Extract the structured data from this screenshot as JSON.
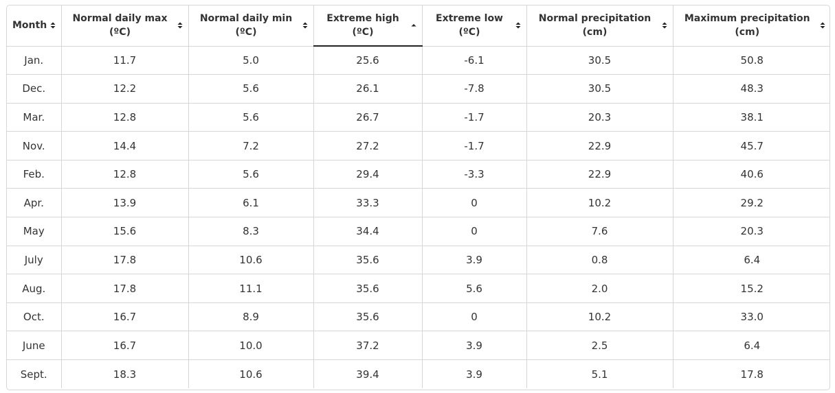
{
  "table": {
    "columns": [
      {
        "line1": "Month",
        "line2": "",
        "sort": "both"
      },
      {
        "line1": "Normal daily max",
        "line2": "(ºC)",
        "sort": "both"
      },
      {
        "line1": "Normal daily min",
        "line2": "(ºC)",
        "sort": "both"
      },
      {
        "line1": "Extreme high",
        "line2": "(ºC)",
        "sort": "asc"
      },
      {
        "line1": "Extreme low",
        "line2": "(ºC)",
        "sort": "both"
      },
      {
        "line1": "Normal precipitation",
        "line2": "(cm)",
        "sort": "both"
      },
      {
        "line1": "Maximum precipitation",
        "line2": "(cm)",
        "sort": "both"
      }
    ],
    "rows": [
      [
        "Jan.",
        "11.7",
        "5.0",
        "25.6",
        "-6.1",
        "30.5",
        "50.8"
      ],
      [
        "Dec.",
        "12.2",
        "5.6",
        "26.1",
        "-7.8",
        "30.5",
        "48.3"
      ],
      [
        "Mar.",
        "12.8",
        "5.6",
        "26.7",
        "-1.7",
        "20.3",
        "38.1"
      ],
      [
        "Nov.",
        "14.4",
        "7.2",
        "27.2",
        "-1.7",
        "22.9",
        "45.7"
      ],
      [
        "Feb.",
        "12.8",
        "5.6",
        "29.4",
        "-3.3",
        "22.9",
        "40.6"
      ],
      [
        "Apr.",
        "13.9",
        "6.1",
        "33.3",
        "0",
        "10.2",
        "29.2"
      ],
      [
        "May",
        "15.6",
        "8.3",
        "34.4",
        "0",
        "7.6",
        "20.3"
      ],
      [
        "July",
        "17.8",
        "10.6",
        "35.6",
        "3.9",
        "0.8",
        "6.4"
      ],
      [
        "Aug.",
        "17.8",
        "11.1",
        "35.6",
        "5.6",
        "2.0",
        "15.2"
      ],
      [
        "Oct.",
        "16.7",
        "8.9",
        "35.6",
        "0",
        "10.2",
        "33.0"
      ],
      [
        "June",
        "16.7",
        "10.0",
        "37.2",
        "3.9",
        "2.5",
        "6.4"
      ],
      [
        "Sept.",
        "18.3",
        "10.6",
        "39.4",
        "3.9",
        "5.1",
        "17.8"
      ]
    ]
  },
  "colors": {
    "border": "#d6d6d6",
    "text": "#333333",
    "active_underline": "#222222"
  },
  "icons": {
    "sortable": "sort-both-icon",
    "sorted_asc": "sort-ascending-icon"
  }
}
